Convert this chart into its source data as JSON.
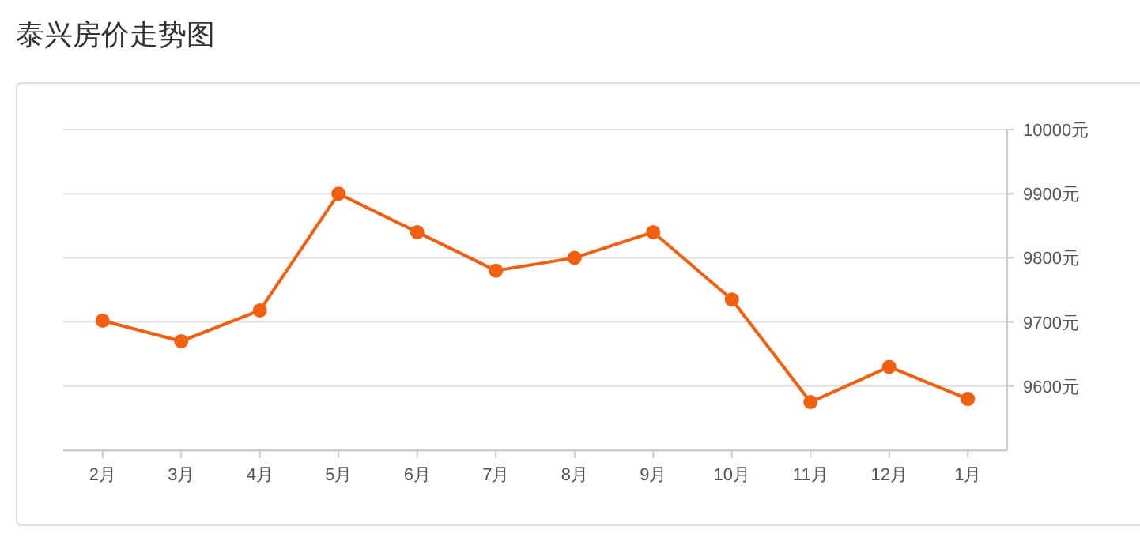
{
  "chart_data": {
    "type": "line",
    "title": "泰兴房价走势图",
    "categories": [
      "2月",
      "3月",
      "4月",
      "5月",
      "6月",
      "7月",
      "8月",
      "9月",
      "10月",
      "11月",
      "12月",
      "1月"
    ],
    "series": [
      {
        "color": "#f2600f",
        "values": [
          9702,
          9670,
          9718,
          9900,
          9840,
          9780,
          9800,
          9840,
          9735,
          9575,
          9630,
          9580
        ]
      }
    ],
    "ylim": [
      9500,
      10000
    ],
    "yticks": [
      {
        "value": 9600,
        "label": "9600元"
      },
      {
        "value": 9700,
        "label": "9700元"
      },
      {
        "value": 9800,
        "label": "9800元"
      },
      {
        "value": 9900,
        "label": "9900元"
      },
      {
        "value": 10000,
        "label": "10000元"
      }
    ],
    "grid": "y",
    "marker": "circle",
    "line_style": "solid"
  }
}
